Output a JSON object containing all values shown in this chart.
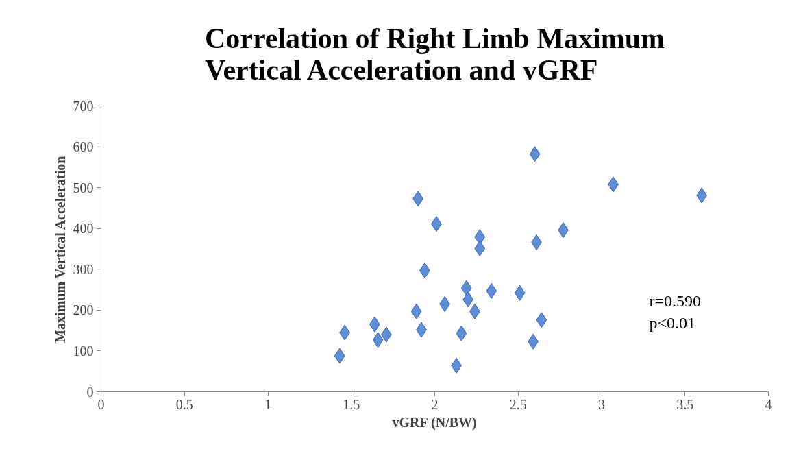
{
  "chart_data": {
    "type": "scatter",
    "title": "Correlation of Right Limb Maximum\nVertical Acceleration and vGRF",
    "xlabel": "vGRF (N/BW)",
    "ylabel": "Maximum Vertical Acceleration",
    "x": [
      1.43,
      1.46,
      1.64,
      1.66,
      1.71,
      1.89,
      1.9,
      1.92,
      1.94,
      2.01,
      2.06,
      2.13,
      2.16,
      2.19,
      2.2,
      2.24,
      2.27,
      2.27,
      2.34,
      2.51,
      2.59,
      2.6,
      2.61,
      2.64,
      2.77,
      3.07,
      3.6
    ],
    "series": [
      {
        "color": "#5b8fd9",
        "values": [
          88,
          145,
          165,
          127,
          140,
          197,
          473,
          152,
          297,
          411,
          215,
          64,
          143,
          254,
          226,
          197,
          379,
          351,
          247,
          242,
          123,
          582,
          366,
          176,
          396,
          508,
          481
        ]
      }
    ],
    "xlim": [
      0,
      4
    ],
    "xticks": [
      0,
      0.5,
      1,
      1.5,
      2,
      2.5,
      3,
      3.5,
      4
    ],
    "ylim": [
      0,
      700
    ],
    "yticks": [
      0,
      100,
      200,
      300,
      400,
      500,
      600,
      700
    ],
    "marker": "diamond",
    "grid": false,
    "annotations": [
      "r=0.590",
      "p<0.01"
    ]
  }
}
